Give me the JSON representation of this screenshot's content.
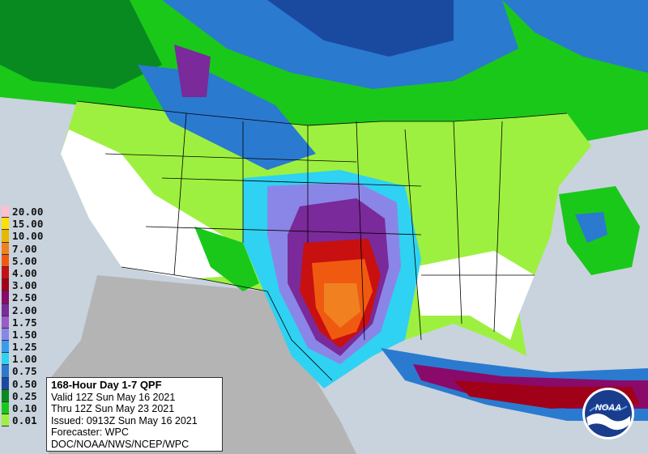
{
  "legend": {
    "items": [
      {
        "label": "20.00",
        "color": "#ffbfcf"
      },
      {
        "label": "15.00",
        "color": "#ffe000"
      },
      {
        "label": "10.00",
        "color": "#e8b800"
      },
      {
        "label": "7.00",
        "color": "#f08020"
      },
      {
        "label": "5.00",
        "color": "#f05a10"
      },
      {
        "label": "4.00",
        "color": "#c81010"
      },
      {
        "label": "3.00",
        "color": "#a00018"
      },
      {
        "label": "2.50",
        "color": "#8a0a6a"
      },
      {
        "label": "2.00",
        "color": "#7a2a9a"
      },
      {
        "label": "1.75",
        "color": "#9a5ac8"
      },
      {
        "label": "1.50",
        "color": "#8a86e8"
      },
      {
        "label": "1.25",
        "color": "#3a9aee"
      },
      {
        "label": "1.00",
        "color": "#2fd2f2"
      },
      {
        "label": "0.75",
        "color": "#2a7ad0"
      },
      {
        "label": "0.50",
        "color": "#1a4aa0"
      },
      {
        "label": "0.25",
        "color": "#088a20"
      },
      {
        "label": "0.10",
        "color": "#1ac81a"
      },
      {
        "label": "0.01",
        "color": "#9ef040"
      }
    ]
  },
  "info": {
    "title": "168-Hour Day 1-7 QPF",
    "valid": "Valid 12Z Sun May 16 2021",
    "thru": "Thru 12Z Sun May 23 2021",
    "issued": "Issued: 0913Z Sun May 16 2021",
    "forecaster": "Forecaster: WPC",
    "agency": "DOC/NOAA/NWS/NCEP/WPC"
  },
  "logo": {
    "text": "NOAA"
  },
  "colors": {
    "background": "#c9d3dd",
    "mexico": "#b4b4b4",
    "ocean": "#c9d3dd",
    "dry": "#ffffff",
    "boundaries": "#000000"
  }
}
